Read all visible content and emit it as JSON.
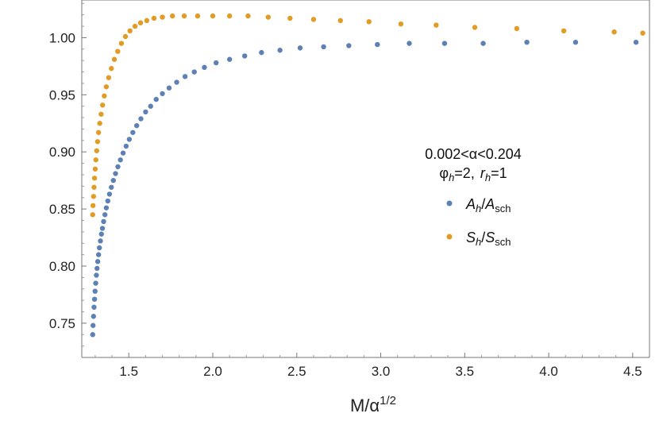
{
  "chart_data": {
    "type": "scatter",
    "title": "",
    "xlabel": "M/α",
    "xlabel_exponent": "1/2",
    "ylabel": "",
    "xlim": [
      1.22,
      4.6
    ],
    "ylim": [
      0.72,
      1.033
    ],
    "x_ticks": [
      1.5,
      2.0,
      2.5,
      3.0,
      3.5,
      4.0,
      4.5
    ],
    "x_tick_labels": [
      "1.5",
      "2.0",
      "2.5",
      "3.0",
      "3.5",
      "4.0",
      "4.5"
    ],
    "y_ticks": [
      0.75,
      0.8,
      0.85,
      0.9,
      0.95,
      1.0
    ],
    "y_tick_labels": [
      "0.75",
      "0.80",
      "0.85",
      "0.90",
      "0.95",
      "1.00"
    ],
    "grid": false,
    "legend_position": "right",
    "annotation": {
      "line1": "0.002<α<0.204",
      "line2_phi": "φ",
      "line2_phi_sub": "h",
      "line2_phi_val": "=2,",
      "line2_r": "r",
      "line2_r_sub": "h",
      "line2_r_val": "=1"
    },
    "legend": [
      {
        "num": "A",
        "num_sub": "h",
        "den": "A",
        "den_sub": "sch",
        "sep": "/",
        "color": "#5e81b5"
      },
      {
        "num": "S",
        "num_sub": "h",
        "den": "S",
        "den_sub": "sch",
        "sep": "/",
        "color": "#e19c24"
      }
    ],
    "series": [
      {
        "color": "#5e81b5",
        "points": [
          [
            1.285,
            0.74
          ],
          [
            1.287,
            0.748
          ],
          [
            1.29,
            0.756
          ],
          [
            1.293,
            0.764
          ],
          [
            1.296,
            0.771
          ],
          [
            1.299,
            0.778
          ],
          [
            1.303,
            0.785
          ],
          [
            1.307,
            0.792
          ],
          [
            1.311,
            0.798
          ],
          [
            1.315,
            0.804
          ],
          [
            1.32,
            0.81
          ],
          [
            1.325,
            0.816
          ],
          [
            1.331,
            0.822
          ],
          [
            1.337,
            0.828
          ],
          [
            1.343,
            0.833
          ],
          [
            1.35,
            0.839
          ],
          [
            1.358,
            0.845
          ],
          [
            1.366,
            0.851
          ],
          [
            1.375,
            0.857
          ],
          [
            1.385,
            0.863
          ],
          [
            1.396,
            0.869
          ],
          [
            1.408,
            0.875
          ],
          [
            1.421,
            0.881
          ],
          [
            1.435,
            0.887
          ],
          [
            1.45,
            0.893
          ],
          [
            1.466,
            0.899
          ],
          [
            1.484,
            0.905
          ],
          [
            1.503,
            0.911
          ],
          [
            1.524,
            0.917
          ],
          [
            1.547,
            0.923
          ],
          [
            1.572,
            0.929
          ],
          [
            1.6,
            0.935
          ],
          [
            1.63,
            0.94
          ],
          [
            1.663,
            0.946
          ],
          [
            1.7,
            0.951
          ],
          [
            1.74,
            0.956
          ],
          [
            1.785,
            0.961
          ],
          [
            1.835,
            0.966
          ],
          [
            1.89,
            0.97
          ],
          [
            1.95,
            0.974
          ],
          [
            2.02,
            0.978
          ],
          [
            2.1,
            0.981
          ],
          [
            2.19,
            0.984
          ],
          [
            2.29,
            0.987
          ],
          [
            2.4,
            0.989
          ],
          [
            2.52,
            0.991
          ],
          [
            2.66,
            0.992
          ],
          [
            2.81,
            0.993
          ],
          [
            2.98,
            0.994
          ],
          [
            3.17,
            0.995
          ],
          [
            3.38,
            0.995
          ],
          [
            3.61,
            0.995
          ],
          [
            3.87,
            0.996
          ],
          [
            4.16,
            0.996
          ],
          [
            4.52,
            0.996
          ]
        ]
      },
      {
        "color": "#e19c24",
        "points": [
          [
            1.285,
            0.845
          ],
          [
            1.287,
            0.853
          ],
          [
            1.29,
            0.861
          ],
          [
            1.293,
            0.869
          ],
          [
            1.296,
            0.877
          ],
          [
            1.3,
            0.885
          ],
          [
            1.304,
            0.893
          ],
          [
            1.309,
            0.901
          ],
          [
            1.314,
            0.909
          ],
          [
            1.32,
            0.917
          ],
          [
            1.327,
            0.925
          ],
          [
            1.335,
            0.933
          ],
          [
            1.344,
            0.941
          ],
          [
            1.354,
            0.949
          ],
          [
            1.366,
            0.957
          ],
          [
            1.38,
            0.965
          ],
          [
            1.396,
            0.973
          ],
          [
            1.414,
            0.981
          ],
          [
            1.434,
            0.988
          ],
          [
            1.456,
            0.995
          ],
          [
            1.48,
            1.001
          ],
          [
            1.507,
            1.006
          ],
          [
            1.537,
            1.01
          ],
          [
            1.57,
            1.013
          ],
          [
            1.607,
            1.015
          ],
          [
            1.65,
            1.017
          ],
          [
            1.7,
            1.018
          ],
          [
            1.76,
            1.019
          ],
          [
            1.83,
            1.019
          ],
          [
            1.91,
            1.019
          ],
          [
            2.0,
            1.019
          ],
          [
            2.1,
            1.019
          ],
          [
            2.21,
            1.019
          ],
          [
            2.33,
            1.018
          ],
          [
            2.46,
            1.017
          ],
          [
            2.6,
            1.016
          ],
          [
            2.76,
            1.015
          ],
          [
            2.93,
            1.014
          ],
          [
            3.12,
            1.012
          ],
          [
            3.33,
            1.011
          ],
          [
            3.56,
            1.009
          ],
          [
            3.81,
            1.008
          ],
          [
            4.09,
            1.006
          ],
          [
            4.39,
            1.005
          ],
          [
            4.56,
            1.004
          ]
        ]
      }
    ]
  }
}
